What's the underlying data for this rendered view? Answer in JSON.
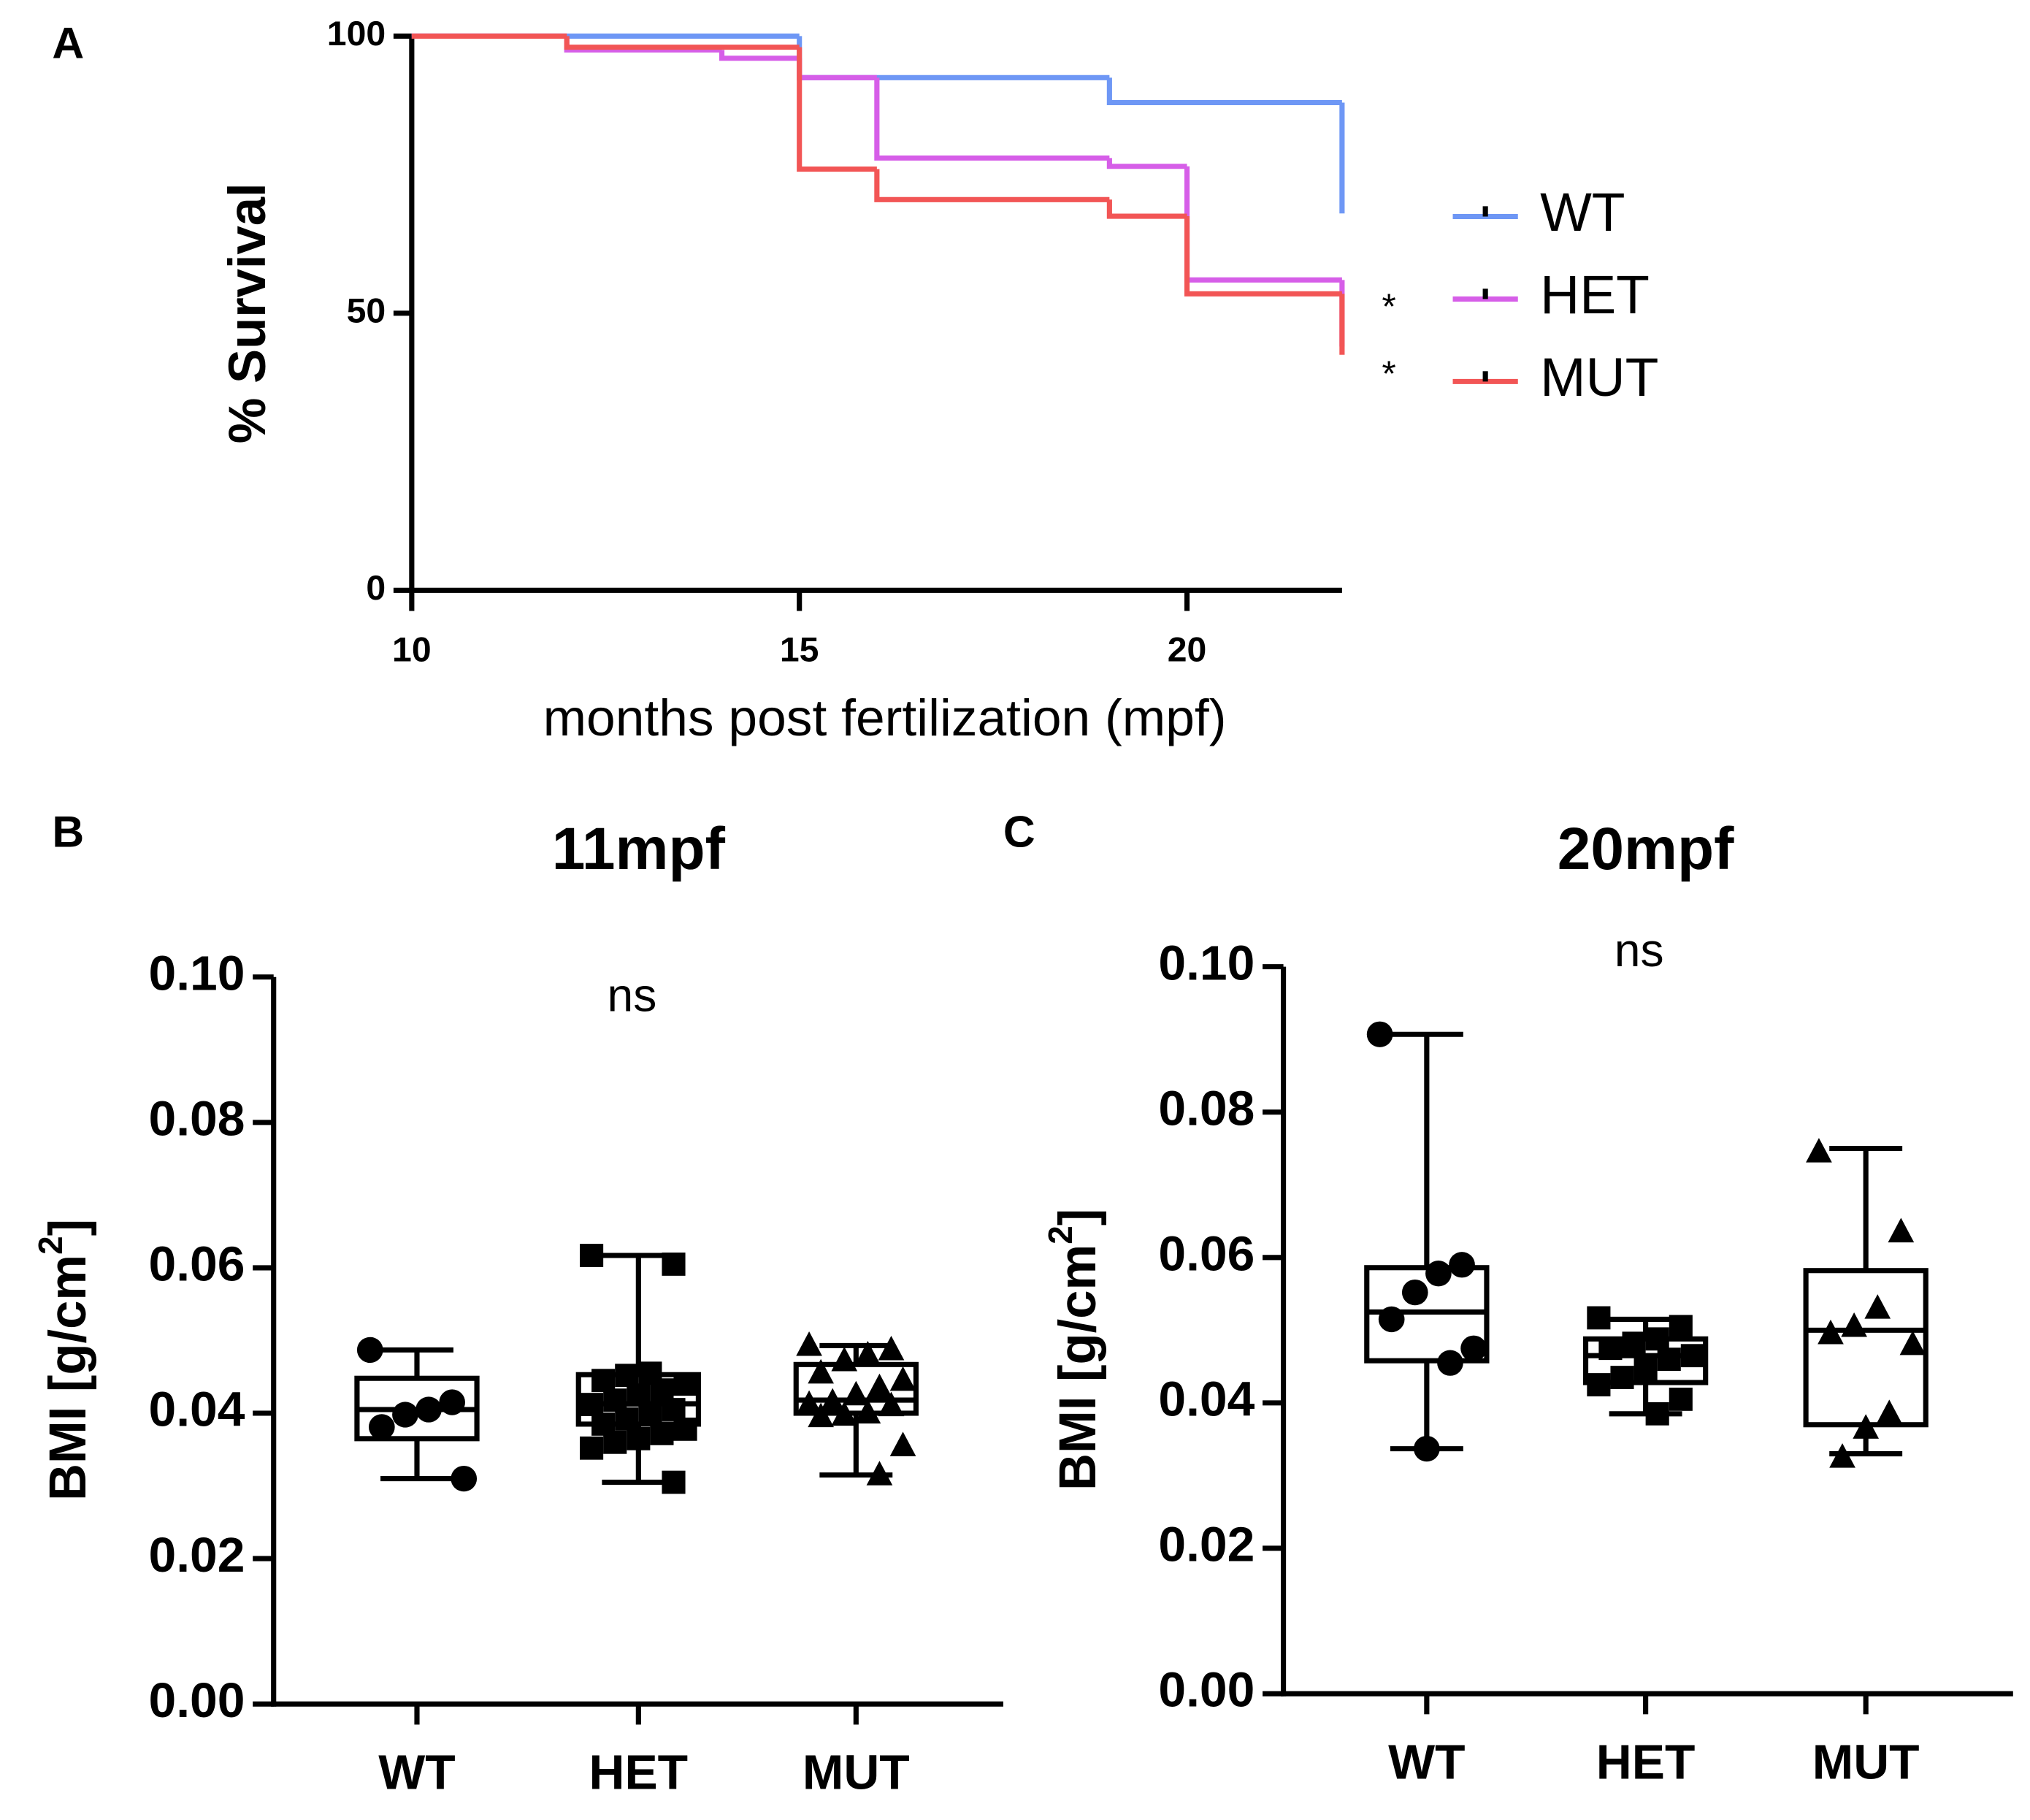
{
  "chart_data": [
    {
      "type": "line",
      "step": true,
      "panel": "A",
      "ylabel": "% Survival",
      "xlabel": "months post fertilization (mpf)",
      "xlim": [
        10,
        22
      ],
      "xticks": [
        10,
        15,
        20
      ],
      "ylim": [
        0,
        100
      ],
      "yticks": [
        0,
        50,
        100
      ],
      "annotations": [
        "*",
        "*"
      ],
      "series": [
        {
          "name": "WT",
          "color": "#6e97f5",
          "x": [
            10,
            15,
            19,
            22,
            22
          ],
          "values": [
            100,
            92.5,
            88,
            88,
            68
          ]
        },
        {
          "name": "HET",
          "color": "#d65ee8",
          "x": [
            10,
            12,
            14,
            15,
            16,
            19,
            20,
            22,
            22
          ],
          "values": [
            100,
            97.5,
            96,
            92.5,
            78,
            76.5,
            56,
            56,
            44
          ]
        },
        {
          "name": "MUT",
          "color": "#f25555",
          "x": [
            10,
            12,
            15,
            16,
            19,
            20,
            22,
            22
          ],
          "values": [
            100,
            98,
            76,
            70.5,
            67.5,
            53.5,
            53.5,
            42.5
          ]
        }
      ]
    },
    {
      "type": "box",
      "panel": "B",
      "title": "11mpf",
      "annotation": "ns",
      "ylabel": [
        "BMI [g/cm",
        "2",
        "]"
      ],
      "categories": [
        "WT",
        "HET",
        "MUT"
      ],
      "markers": [
        "circle",
        "square",
        "triangle"
      ],
      "ylim": [
        0,
        0.1
      ],
      "yticks": [
        {
          "value": 0,
          "label": "0.00"
        },
        0.02,
        0.04,
        0.06,
        0.08,
        {
          "value": 0.1,
          "label": "0.10"
        }
      ],
      "boxes": [
        {
          "min": 0.031,
          "q1": 0.0365,
          "median": 0.0405,
          "q3": 0.0448,
          "max": 0.0487
        },
        {
          "min": 0.0305,
          "q1": 0.0385,
          "median": 0.0413,
          "q3": 0.0453,
          "max": 0.0617
        },
        {
          "min": 0.0315,
          "q1": 0.04,
          "median": 0.0418,
          "q3": 0.0467,
          "max": 0.0493
        }
      ],
      "points": [
        [
          0.0487,
          0.0415,
          0.0405,
          0.0398,
          0.0381,
          0.031
        ],
        [
          0.0617,
          0.0605,
          0.0455,
          0.0452,
          0.0445,
          0.044,
          0.0432,
          0.0425,
          0.0418,
          0.0412,
          0.0405,
          0.0398,
          0.0392,
          0.0385,
          0.0378,
          0.0372,
          0.0365,
          0.036,
          0.0352,
          0.0305
        ],
        [
          0.0493,
          0.0487,
          0.048,
          0.0472,
          0.0455,
          0.0445,
          0.0435,
          0.0425,
          0.0415,
          0.0412,
          0.041,
          0.04,
          0.0397,
          0.0395,
          0.0355,
          0.0315
        ]
      ]
    },
    {
      "type": "box",
      "panel": "C",
      "title": "20mpf",
      "annotation": "ns",
      "ylabel": [
        "BMI [g/cm",
        "2",
        "]"
      ],
      "categories": [
        "WT",
        "HET",
        "MUT"
      ],
      "markers": [
        "circle",
        "square",
        "triangle"
      ],
      "ylim": [
        0,
        0.1
      ],
      "yticks": [
        {
          "value": 0,
          "label": "0.00"
        },
        0.02,
        0.04,
        0.06,
        0.08,
        {
          "value": 0.1,
          "label": "0.10"
        }
      ],
      "boxes": [
        {
          "min": 0.0337,
          "q1": 0.0458,
          "median": 0.0525,
          "q3": 0.0586,
          "max": 0.0907
        },
        {
          "min": 0.0385,
          "q1": 0.0428,
          "median": 0.0465,
          "q3": 0.0488,
          "max": 0.0515
        },
        {
          "min": 0.033,
          "q1": 0.037,
          "median": 0.05,
          "q3": 0.0582,
          "max": 0.075
        }
      ],
      "points": [
        [
          0.0907,
          0.059,
          0.0578,
          0.0552,
          0.0515,
          0.0475,
          0.0455,
          0.0337
        ],
        [
          0.0517,
          0.0505,
          0.0488,
          0.0482,
          0.0475,
          0.0465,
          0.046,
          0.0447,
          0.0435,
          0.0425,
          0.0405,
          0.0385
        ],
        [
          0.0745,
          0.0635,
          0.053,
          0.0505,
          0.0495,
          0.048,
          0.0385,
          0.0365,
          0.0325
        ]
      ]
    }
  ]
}
